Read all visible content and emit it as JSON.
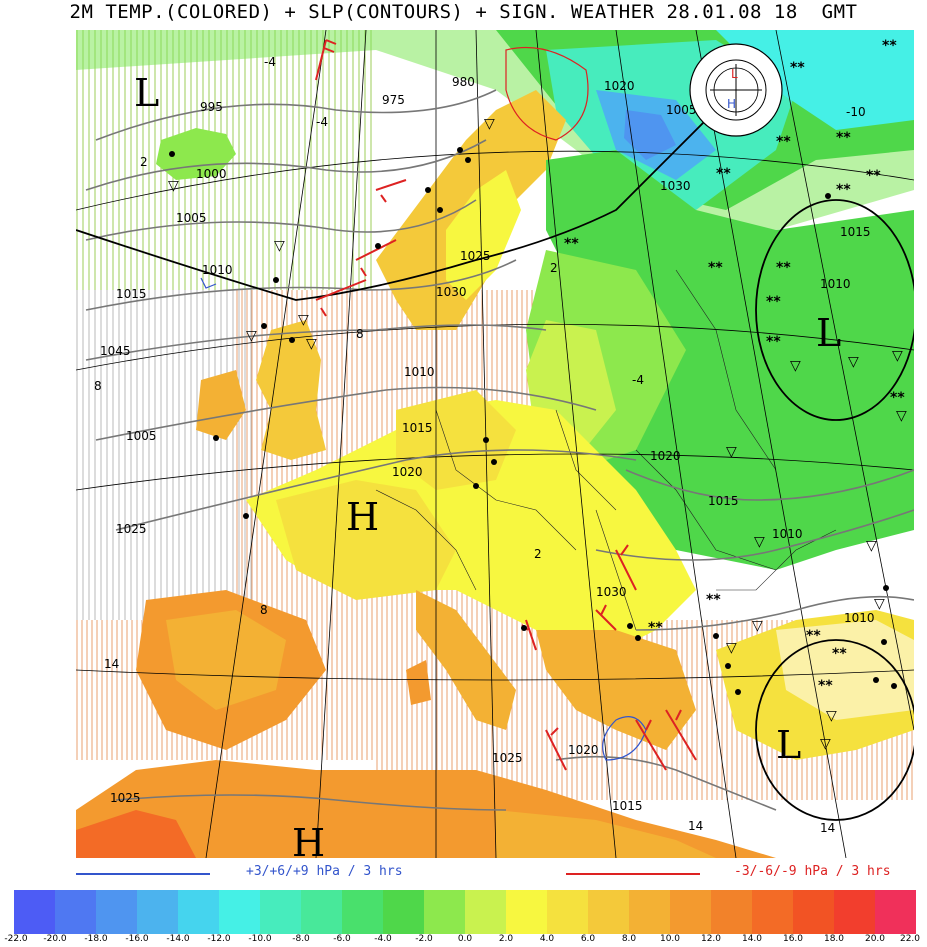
{
  "title": "2M TEMP.(COLORED) + SLP(CONTOURS) + SIGN. WEATHER 28.01.08 18  GMT",
  "logo_text": "Institut für Geophysik und Meteorologie Universität zu Köln",
  "isobar_labels": [
    "975",
    "980",
    "995",
    "1000",
    "1005",
    "1010",
    "1015",
    "1020",
    "1025",
    "1030",
    "1045",
    "1005",
    "1010",
    "1015",
    "1020",
    "1025",
    "1030",
    "1015",
    "1010",
    "1005",
    "1010",
    "1015",
    "1020",
    "1025",
    "1025",
    "1020",
    "1030",
    "1015",
    "1010"
  ],
  "temp_labels": [
    "-4",
    "-4",
    "2",
    "8",
    "8",
    "8",
    "2",
    "-4",
    "2",
    "14",
    "14",
    "14",
    "-10"
  ],
  "highs": [
    "H",
    "H"
  ],
  "lows": [
    "L",
    "L",
    "L"
  ],
  "legend": {
    "rise": "+3/+6/+9 hPa / 3 hrs",
    "fall": "-3/-6/-9 hPa / 3 hrs",
    "rise_color": "#3355cc",
    "fall_color": "#dd2222"
  },
  "scale": {
    "ticks": [
      "-22.0",
      "-20.0",
      "-18.0",
      "-16.0",
      "-14.0",
      "-12.0",
      "-10.0",
      "-8.0",
      "-6.0",
      "-4.0",
      "-2.0",
      "0.0",
      "2.0",
      "4.0",
      "6.0",
      "8.0",
      "10.0",
      "12.0",
      "14.0",
      "16.0",
      "18.0",
      "20.0",
      "22.0"
    ],
    "colors": [
      "#4d5cf5",
      "#4f78f2",
      "#4f95f0",
      "#4cb3ee",
      "#45d4ee",
      "#45f0e6",
      "#47ecbd",
      "#48e89a",
      "#49e06c",
      "#4fd74a",
      "#8de84d",
      "#c9f24f",
      "#f7f740",
      "#f5e13e",
      "#f4c93a",
      "#f3b134",
      "#f39a2f",
      "#f2822a",
      "#f36b26",
      "#f25324",
      "#f23e2d",
      "#f0305a"
    ]
  }
}
